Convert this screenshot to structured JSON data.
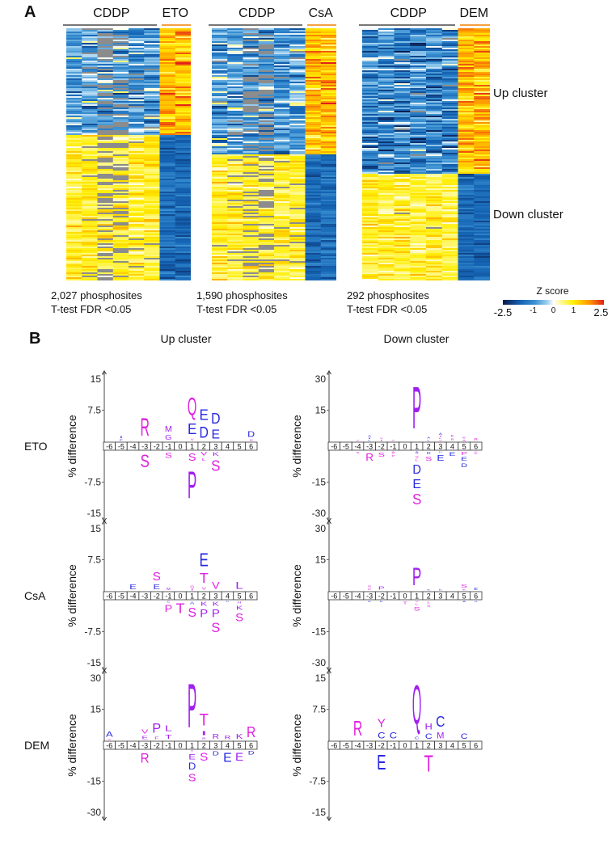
{
  "panel_a": {
    "letter": "A",
    "heatmaps": [
      {
        "group_label": "CDDP",
        "treatment": "ETO",
        "count": "2,027 phosphosites",
        "test": "T-test FDR <0.05",
        "up_fraction": 0.42,
        "grey": [
          0.02,
          0.05,
          0.4,
          0.3,
          0.05,
          0.05
        ]
      },
      {
        "group_label": "CDDP",
        "treatment": "CsA",
        "count": "1,590 phosphosites",
        "test": "T-test FDR <0.05",
        "up_fraction": 0.5,
        "grey": [
          0.02,
          0.03,
          0.3,
          0.3,
          0.03,
          0.03
        ]
      },
      {
        "group_label": "CDDP",
        "treatment": "DEM",
        "count": "292 phosphosites",
        "test": "T-test FDR <0.05",
        "up_fraction": 0.58,
        "grey": [
          0.01,
          0.01,
          0.02,
          0.02,
          0.01,
          0.01
        ]
      }
    ],
    "up_cluster_label": "Up cluster",
    "down_cluster_label": "Down cluster",
    "colorbar": {
      "title": "Z score",
      "ticks": [
        "-2.5",
        "-1",
        "0",
        "1",
        "2.5"
      ],
      "tick_values": [
        -2.5,
        -1,
        0,
        1,
        2.5
      ],
      "range": [
        -2.5,
        2.5
      ]
    },
    "colors": {
      "navy": "#0b1a4d",
      "blue": "#1565b5",
      "lightblue": "#9fd0f0",
      "white": "#ffffff",
      "yellow": "#ffee00",
      "orange": "#ff9400",
      "red": "#e0201a",
      "grey": "#8c8c8c",
      "treatment_bar": "#f5a040",
      "cddp_bar": "#777777"
    }
  },
  "panel_b": {
    "letter": "B",
    "col_headers": [
      "Up cluster",
      "Down cluster"
    ],
    "ylabel": "% difference",
    "positions": [
      "-6",
      "-5",
      "-4",
      "-3",
      "-2",
      "-1",
      "0",
      "1",
      "2",
      "3",
      "4",
      "5",
      "6"
    ],
    "letter_colors": {
      "m": "#e020e0",
      "p": "#a020f0",
      "b": "#2828e0"
    },
    "rows": [
      "ETO",
      "CsA",
      "DEM"
    ],
    "logos": [
      {
        "row": "ETO",
        "cluster": "up",
        "max": 15,
        "ticks": [
          "15",
          "7.5",
          "-7.5",
          "-15"
        ],
        "above": {
          "-5": [
            [
              "I",
              0.7,
              "b"
            ],
            [
              "F",
              0.5,
              "b"
            ]
          ],
          "-3": [
            [
              "R",
              6,
              "m"
            ]
          ],
          "-1": [
            [
              "M",
              2,
              "p"
            ],
            [
              "G",
              1.6,
              "p"
            ]
          ],
          "1": [
            [
              "Q",
              6,
              "m"
            ],
            [
              "E",
              3.5,
              "b"
            ],
            [
              "V",
              0.8,
              "m"
            ]
          ],
          "2": [
            [
              "E",
              3.6,
              "b"
            ],
            [
              "D",
              3.8,
              "b"
            ]
          ],
          "3": [
            [
              "D",
              3.6,
              "b"
            ],
            [
              "E",
              3,
              "b"
            ]
          ],
          "6": [
            [
              "D",
              2,
              "b"
            ],
            [
              "M",
              0.5,
              "m"
            ]
          ]
        },
        "below": {
          "-3": [
            [
              "S",
              4.2,
              "m"
            ]
          ],
          "-1": [
            [
              "S",
              1.8,
              "m"
            ]
          ],
          "1": [
            [
              "S",
              2.5,
              "m"
            ],
            [
              "P",
              9,
              "p"
            ]
          ],
          "2": [
            [
              "V",
              1.2,
              "m"
            ],
            [
              "L",
              1,
              "m"
            ]
          ],
          "3": [
            [
              "K",
              1.3,
              "p"
            ],
            [
              "S",
              3.5,
              "m"
            ]
          ]
        }
      },
      {
        "row": "ETO",
        "cluster": "down",
        "max": 30,
        "ticks": [
          "30",
          "15",
          "-15",
          "-30"
        ],
        "above": {
          "-4": [
            [
              "V",
              0.7,
              "m"
            ]
          ],
          "-3": [
            [
              "A",
              1,
              "b"
            ],
            [
              "I",
              0.7,
              "b"
            ],
            [
              "L",
              0.7,
              "b"
            ]
          ],
          "-2": [
            [
              "V",
              0.5,
              "m"
            ],
            [
              "I",
              0.5,
              "m"
            ]
          ],
          "-1": [
            [
              "V",
              0.7,
              "m"
            ]
          ],
          "1": [
            [
              "P",
              28,
              "p"
            ]
          ],
          "2": [
            [
              "A",
              1.3,
              "b"
            ],
            [
              "L",
              0.5,
              "b"
            ]
          ],
          "3": [
            [
              "A",
              1.5,
              "b"
            ],
            [
              "I",
              0.6,
              "m"
            ],
            [
              "L",
              0.6,
              "m"
            ],
            [
              "V",
              0.6,
              "m"
            ]
          ],
          "4": [
            [
              "K",
              1.5,
              "p"
            ],
            [
              "R",
              1.5,
              "m"
            ]
          ],
          "5": [
            [
              "K",
              1,
              "p"
            ],
            [
              "A",
              0.9,
              "m"
            ]
          ],
          "6": [
            [
              "R",
              1.8,
              "m"
            ]
          ]
        },
        "below": {
          "-4": [
            [
              "S",
              1.3,
              "m"
            ]
          ],
          "-3": [
            [
              "R",
              5,
              "m"
            ]
          ],
          "-2": [
            [
              "S",
              3,
              "m"
            ]
          ],
          "-1": [
            [
              "A",
              0.7,
              "m"
            ],
            [
              "V",
              0.7,
              "m"
            ],
            [
              "P",
              1,
              "m"
            ]
          ],
          "1": [
            [
              "A",
              0.8,
              "b"
            ],
            [
              "V",
              0.8,
              "m"
            ],
            [
              "Q",
              1.5,
              "m"
            ],
            [
              "L",
              1.5,
              "m"
            ],
            [
              "D",
              6,
              "b"
            ],
            [
              "E",
              6,
              "b"
            ],
            [
              "S",
              7,
              "m"
            ]
          ],
          "2": [
            [
              "D",
              1.8,
              "b"
            ],
            [
              "S",
              2.8,
              "m"
            ]
          ],
          "3": [
            [
              "D",
              0.8,
              "b"
            ],
            [
              "E",
              4,
              "b"
            ]
          ],
          "4": [
            [
              "E",
              2.5,
              "b"
            ]
          ],
          "5": [
            [
              "P",
              2.2,
              "m"
            ],
            [
              "E",
              2.4,
              "b"
            ],
            [
              "D",
              2.6,
              "b"
            ]
          ],
          "6": [
            [
              "D",
              0.6,
              "m"
            ],
            [
              "E",
              0.6,
              "m"
            ]
          ]
        }
      },
      {
        "row": "CsA",
        "cluster": "up",
        "max": 15,
        "ticks": [
          "15",
          "7.5",
          "-7.5",
          "-15"
        ],
        "above": {
          "-4": [
            [
              "E",
              1.6,
              "b"
            ]
          ],
          "-2": [
            [
              "S",
              2.8,
              "m"
            ],
            [
              "E",
              1.6,
              "b"
            ]
          ],
          "-1": [
            [
              "M",
              0.9,
              "p"
            ]
          ],
          "1": [
            [
              "Q",
              0.9,
              "m"
            ],
            [
              "I",
              0.3,
              "m"
            ]
          ],
          "2": [
            [
              "E",
              4.4,
              "b"
            ],
            [
              "T",
              3.3,
              "m"
            ],
            [
              "V",
              1,
              "m"
            ]
          ],
          "3": [
            [
              "V",
              2.3,
              "m"
            ]
          ],
          "5": [
            [
              "L",
              2.3,
              "p"
            ]
          ]
        },
        "below": {
          "-1": [
            [
              "C",
              0.5,
              "b"
            ],
            [
              "P",
              2.3,
              "m"
            ]
          ],
          "0": [
            [
              "T",
              3.3,
              "m"
            ]
          ],
          "1": [
            [
              "A",
              1,
              "b"
            ],
            [
              "S",
              3,
              "m"
            ]
          ],
          "2": [
            [
              "K",
              1.4,
              "p"
            ],
            [
              "P",
              2.6,
              "p"
            ]
          ],
          "3": [
            [
              "K",
              1.4,
              "p"
            ],
            [
              "P",
              2.6,
              "p"
            ],
            [
              "S",
              3.2,
              "m"
            ]
          ],
          "4": [
            [
              "D",
              0.4,
              "b"
            ]
          ],
          "5": [
            [
              "H",
              0.8,
              "p"
            ],
            [
              "K",
              1.4,
              "p"
            ],
            [
              "S",
              2.6,
              "m"
            ]
          ]
        }
      },
      {
        "row": "CsA",
        "cluster": "down",
        "max": 30,
        "ticks": [
          "30",
          "15",
          "-15",
          "-30"
        ],
        "above": {
          "-3": [
            [
              "R",
              1.2,
              "m"
            ],
            [
              "P",
              1.2,
              "m"
            ]
          ],
          "-2": [
            [
              "P",
              2.2,
              "p"
            ]
          ],
          "1": [
            [
              "P",
              12,
              "p"
            ]
          ],
          "2": [
            [
              "K",
              0.5,
              "b"
            ]
          ],
          "3": [
            [
              "K",
              0.5,
              "b"
            ]
          ],
          "5": [
            [
              "S",
              2.3,
              "m"
            ],
            [
              "E",
              0.7,
              "p"
            ]
          ],
          "6": [
            [
              "E",
              1.8,
              "b"
            ]
          ]
        },
        "below": {
          "-3": [
            [
              "E",
              0.4,
              "b"
            ]
          ],
          "-2": [
            [
              "E",
              0.4,
              "b"
            ]
          ],
          "0": [
            [
              "T",
              2,
              "m"
            ]
          ],
          "1": [
            [
              "V",
              0.6,
              "m"
            ],
            [
              "L",
              1.3,
              "m"
            ],
            [
              "S",
              2.6,
              "m"
            ]
          ],
          "2": [
            [
              "L",
              1.5,
              "m"
            ],
            [
              "S",
              1.5,
              "m"
            ]
          ],
          "5": [
            [
              "A",
              0.6,
              "b"
            ]
          ],
          "6": [
            [
              "G",
              0.5,
              "b"
            ]
          ]
        }
      },
      {
        "row": "DEM",
        "cluster": "up",
        "max": 30,
        "ticks": [
          "30",
          "15",
          "-15",
          "-30"
        ],
        "above": {
          "-6": [
            [
              "A",
              3.5,
              "b"
            ],
            [
              "W",
              0.8,
              "m"
            ]
          ],
          "-3": [
            [
              "V",
              3,
              "m"
            ],
            [
              "E",
              2.2,
              "p"
            ]
          ],
          "-2": [
            [
              "P",
              6.5,
              "p"
            ],
            [
              "F",
              2,
              "p"
            ]
          ],
          "-1": [
            [
              "L",
              4,
              "p"
            ],
            [
              "T",
              3,
              "p"
            ]
          ],
          "1": [
            [
              "P",
              29,
              "p"
            ]
          ],
          "2": [
            [
              "T",
              8,
              "m"
            ],
            [
              "I",
              3,
              "p"
            ],
            [
              "R",
              1.6,
              "p"
            ]
          ],
          "3": [
            [
              "R",
              3.2,
              "p"
            ]
          ],
          "4": [
            [
              "R",
              2.6,
              "p"
            ]
          ],
          "5": [
            [
              "K",
              3.4,
              "p"
            ]
          ],
          "6": [
            [
              "R",
              7,
              "m"
            ]
          ]
        },
        "below": {
          "-3": [
            [
              "R",
              6.5,
              "m"
            ]
          ],
          "1": [
            [
              "T",
              1,
              "m"
            ],
            [
              "E",
              3.5,
              "p"
            ],
            [
              "D",
              4.5,
              "b"
            ],
            [
              "S",
              5,
              "m"
            ]
          ],
          "2": [
            [
              "S",
              5.5,
              "m"
            ]
          ],
          "3": [
            [
              "D",
              2.8,
              "b"
            ]
          ],
          "4": [
            [
              "E",
              6,
              "b"
            ]
          ],
          "5": [
            [
              "E",
              5.5,
              "p"
            ]
          ],
          "6": [
            [
              "D",
              2.4,
              "b"
            ]
          ]
        }
      },
      {
        "row": "DEM",
        "cluster": "down",
        "max": 15,
        "ticks": [
          "15",
          "7.5",
          "-7.5",
          "-15"
        ],
        "above": {
          "-4": [
            [
              "R",
              5,
              "m"
            ]
          ],
          "-2": [
            [
              "Y",
              2.8,
              "m"
            ],
            [
              "C",
              2.2,
              "b"
            ]
          ],
          "-1": [
            [
              "C",
              2.2,
              "b"
            ]
          ],
          "1": [
            [
              "Q",
              13,
              "p"
            ],
            [
              "C",
              1,
              "b"
            ]
          ],
          "2": [
            [
              "H",
              2.2,
              "p"
            ],
            [
              "C",
              1.8,
              "b"
            ]
          ],
          "3": [
            [
              "C",
              3.5,
              "b"
            ],
            [
              "M",
              2.2,
              "p"
            ]
          ],
          "5": [
            [
              "C",
              1.8,
              "b"
            ]
          ]
        },
        "below": {
          "-2": [
            [
              "E",
              5,
              "b"
            ]
          ],
          "2": [
            [
              "T",
              5.5,
              "m"
            ]
          ]
        }
      }
    ]
  }
}
